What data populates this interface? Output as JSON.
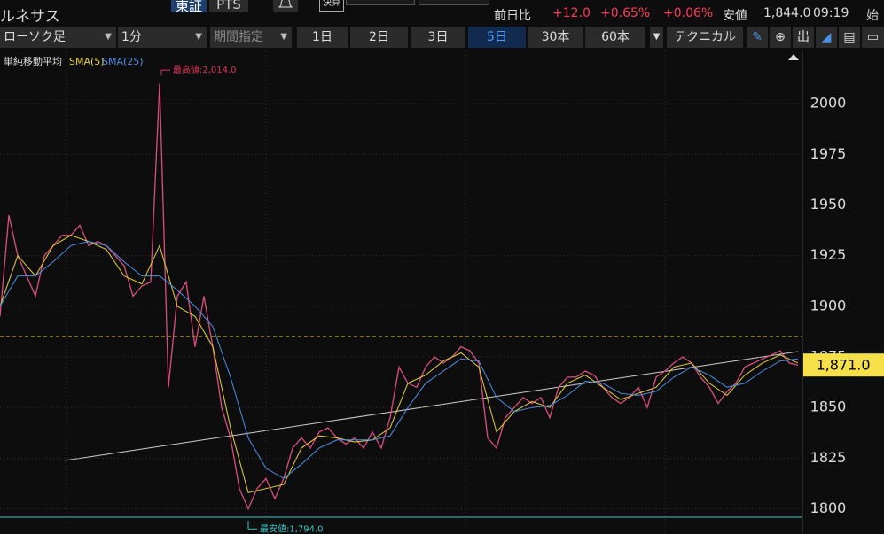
{
  "header": {
    "title": "ルネサス",
    "exchange": [
      "東証",
      "PTS"
    ],
    "earnings": "決算",
    "quote": {
      "change_label": "前日比",
      "change": "+12.0",
      "change_pct": "+0.65%",
      "other_pct": "+0.06%",
      "low_label": "安値",
      "low": "1,844.0",
      "time": "09:19",
      "open_label": "始"
    }
  },
  "toolbar": {
    "chart_type": "ローソク足",
    "interval": "1分",
    "period": "期間指定",
    "ranges": [
      "1日",
      "2日",
      "3日",
      "5日",
      "30本",
      "60本"
    ],
    "selected_range": 3,
    "technical": "テクニカル"
  },
  "chart_data": {
    "type": "line",
    "legend_title": "単純移動平均",
    "color": "#d9507e",
    "values": [
      1895,
      1945,
      1925,
      1915,
      1905,
      1925,
      1930,
      1935,
      1935,
      1940,
      1930,
      1932,
      1930,
      1925,
      1920,
      1905,
      1910,
      1912,
      2010,
      1860,
      1905,
      1912,
      1880,
      1905,
      1880,
      1850,
      1835,
      1810,
      1800,
      1810,
      1815,
      1805,
      1815,
      1830,
      1835,
      1830,
      1838,
      1840,
      1835,
      1832,
      1835,
      1830,
      1838,
      1830,
      1845,
      1870,
      1862,
      1860,
      1870,
      1875,
      1872,
      1875,
      1880,
      1878,
      1872,
      1835,
      1830,
      1845,
      1850,
      1855,
      1852,
      1855,
      1845,
      1860,
      1865,
      1865,
      1868,
      1866,
      1860,
      1855,
      1852,
      1855,
      1860,
      1850,
      1865,
      1868,
      1872,
      1875,
      1872,
      1865,
      1860,
      1852,
      1858,
      1862,
      1870,
      1872,
      1874,
      1876,
      1878,
      1872,
      1871
    ],
    "series": [
      {
        "name": "SMA(5)",
        "color": "#e6d23a",
        "values": [
          1900,
          1925,
          1915,
          1930,
          1935,
          1932,
          1928,
          1915,
          1911,
          1930,
          1900,
          1895,
          1880,
          1840,
          1808,
          1810,
          1812,
          1830,
          1836,
          1835,
          1833,
          1834,
          1840,
          1862,
          1866,
          1873,
          1877,
          1870,
          1838,
          1848,
          1853,
          1850,
          1862,
          1866,
          1860,
          1854,
          1857,
          1860,
          1870,
          1872,
          1862,
          1856,
          1866,
          1872,
          1876,
          1872
        ]
      },
      {
        "name": "SMA(25)",
        "color": "#4d8fe6",
        "values": [
          1900,
          1915,
          1915,
          1922,
          1930,
          1932,
          1930,
          1922,
          1915,
          1915,
          1908,
          1900,
          1890,
          1865,
          1835,
          1820,
          1815,
          1822,
          1830,
          1834,
          1834,
          1834,
          1836,
          1850,
          1862,
          1868,
          1874,
          1873,
          1855,
          1848,
          1850,
          1851,
          1856,
          1863,
          1862,
          1857,
          1856,
          1858,
          1865,
          1870,
          1866,
          1860,
          1862,
          1868,
          1873,
          1874
        ]
      }
    ],
    "ylim": [
      1788,
      2025
    ],
    "yticks": [
      1800,
      1825,
      1850,
      1875,
      1900,
      1925,
      1950,
      1975,
      2000
    ],
    "grid": true,
    "annotations": [
      {
        "text": "最高値:2,014.0",
        "value": 2014,
        "color": "#e0335a"
      },
      {
        "text": "最安値:1,794.0",
        "value": 1794,
        "color": "#3cc6c6"
      }
    ],
    "last_price": {
      "value": 1871,
      "label": "1,871.0"
    }
  }
}
